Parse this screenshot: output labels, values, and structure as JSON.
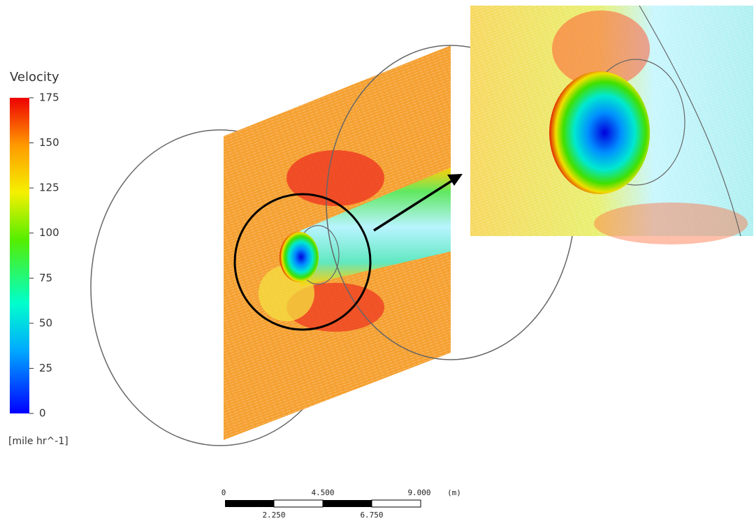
{
  "legend": {
    "title": "Velocity",
    "ticks": [
      0,
      25,
      50,
      75,
      100,
      125,
      150,
      175
    ],
    "unit": "[mile  hr^-1]"
  },
  "scale_bar": {
    "top_labels": [
      "0",
      "4.500",
      "9.000"
    ],
    "unit": "(m)",
    "bottom_labels": [
      "2.250",
      "6.750"
    ]
  }
}
